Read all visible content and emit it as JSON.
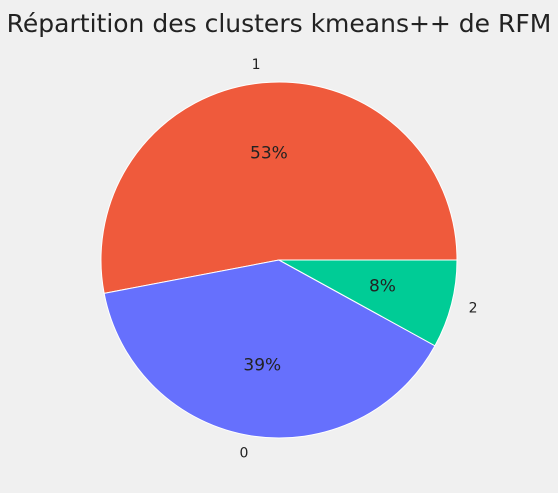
{
  "chart_data": {
    "type": "pie",
    "title": "Répartition des clusters kmeans++ de RFM",
    "start_angle_deg": 0,
    "direction": "counterclockwise",
    "slices": [
      {
        "label": "1",
        "value": 53,
        "pct_label": "53%",
        "color": "#ef5a3c"
      },
      {
        "label": "0",
        "value": 39,
        "pct_label": "39%",
        "color": "#6670fd"
      },
      {
        "label": "2",
        "value": 8,
        "pct_label": "8%",
        "color": "#00cc96"
      }
    ]
  }
}
